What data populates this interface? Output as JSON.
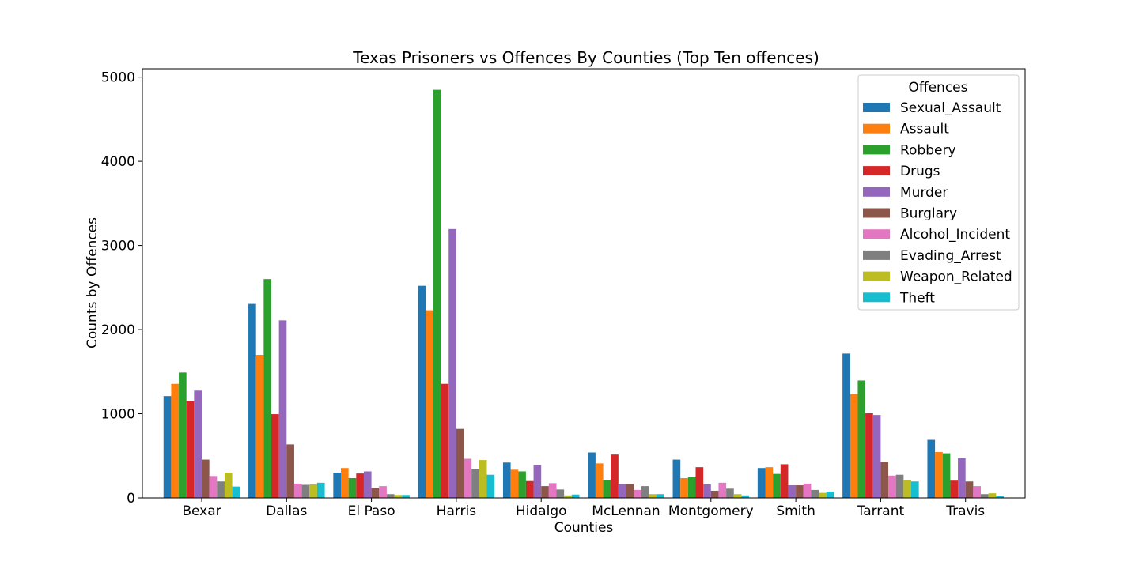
{
  "chart_data": {
    "type": "bar",
    "title": "Texas Prisoners vs Offences By Counties (Top Ten offences)",
    "xlabel": "Counties",
    "ylabel": "Counts by Offences",
    "ylim": [
      0,
      5100
    ],
    "yticks": [
      0,
      1000,
      2000,
      3000,
      4000,
      5000
    ],
    "legend_title": "Offences",
    "legend_position": "top-right",
    "grid": false,
    "categories": [
      "Bexar",
      "Dallas",
      "El Paso",
      "Harris",
      "Hidalgo",
      "McLennan",
      "Montgomery",
      "Smith",
      "Tarrant",
      "Travis"
    ],
    "series": [
      {
        "name": "Sexual_Assault",
        "color": "#1f77b4",
        "values": [
          1210,
          2305,
          300,
          2520,
          420,
          540,
          455,
          355,
          1715,
          690
        ]
      },
      {
        "name": "Assault",
        "color": "#ff7f0e",
        "values": [
          1355,
          1700,
          355,
          2230,
          335,
          410,
          235,
          365,
          1235,
          545
        ]
      },
      {
        "name": "Robbery",
        "color": "#2ca02c",
        "values": [
          1490,
          2600,
          235,
          4850,
          315,
          215,
          245,
          285,
          1395,
          530
        ]
      },
      {
        "name": "Drugs",
        "color": "#d62728",
        "values": [
          1150,
          995,
          290,
          1355,
          200,
          515,
          365,
          400,
          1005,
          205
        ]
      },
      {
        "name": "Murder",
        "color": "#9467bd",
        "values": [
          1275,
          2110,
          315,
          3195,
          390,
          165,
          160,
          150,
          985,
          470
        ]
      },
      {
        "name": "Burglary",
        "color": "#8c564b",
        "values": [
          455,
          635,
          120,
          820,
          140,
          165,
          85,
          150,
          430,
          195
        ]
      },
      {
        "name": "Alcohol_Incident",
        "color": "#e377c2",
        "values": [
          260,
          170,
          140,
          465,
          175,
          95,
          180,
          170,
          265,
          140
        ]
      },
      {
        "name": "Evading_Arrest",
        "color": "#7f7f7f",
        "values": [
          195,
          155,
          45,
          345,
          100,
          140,
          110,
          95,
          275,
          45
        ]
      },
      {
        "name": "Weapon_Related",
        "color": "#bcbd22",
        "values": [
          300,
          160,
          35,
          450,
          30,
          45,
          45,
          60,
          210,
          55
        ]
      },
      {
        "name": "Theft",
        "color": "#17becf",
        "values": [
          135,
          180,
          35,
          275,
          40,
          45,
          30,
          75,
          195,
          20
        ]
      }
    ]
  }
}
